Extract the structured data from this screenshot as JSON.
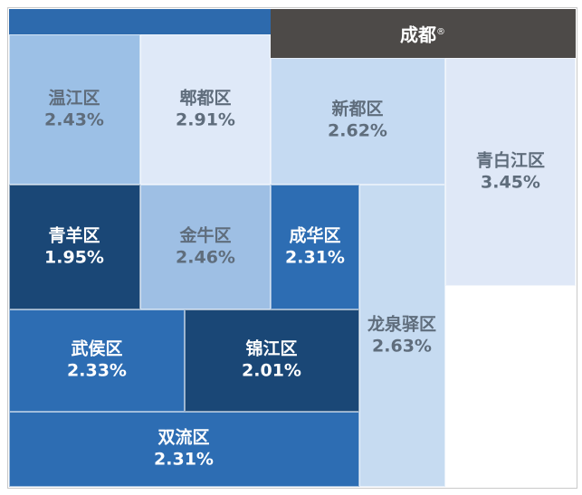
{
  "chart_data": {
    "type": "treemap",
    "title": "成都",
    "title_mark": "®",
    "cells": [
      {
        "name": "温江区",
        "value": "2.43%",
        "color": "#9cc0e6",
        "text_color": "#5f6d7c"
      },
      {
        "name": "郫都区",
        "value": "2.91%",
        "color": "#dfe9f8",
        "text_color": "#5f6d7c"
      },
      {
        "name": "新都区",
        "value": "2.62%",
        "color": "#c5daf2",
        "text_color": "#5f6d7c"
      },
      {
        "name": "青白江区",
        "value": "3.45%",
        "color": "#dfe8f7",
        "text_color": "#5f6d7c"
      },
      {
        "name": "青羊区",
        "value": "1.95%",
        "color": "#1a4776",
        "text_color": "#ffffff"
      },
      {
        "name": "金牛区",
        "value": "2.46%",
        "color": "#9ebfe4",
        "text_color": "#5f6d7c"
      },
      {
        "name": "成华区",
        "value": "2.31%",
        "color": "#2d6db3",
        "text_color": "#ffffff"
      },
      {
        "name": "龙泉驿区",
        "value": "2.63%",
        "color": "#c6dbf1",
        "text_color": "#5f6d7c"
      },
      {
        "name": "武侯区",
        "value": "2.33%",
        "color": "#2d6db3",
        "text_color": "#ffffff"
      },
      {
        "name": "锦江区",
        "value": "2.01%",
        "color": "#1a4776",
        "text_color": "#ffffff"
      },
      {
        "name": "双流区",
        "value": "2.31%",
        "color": "#2d6db3",
        "text_color": "#ffffff"
      }
    ],
    "header_color": "#4d4a48"
  }
}
